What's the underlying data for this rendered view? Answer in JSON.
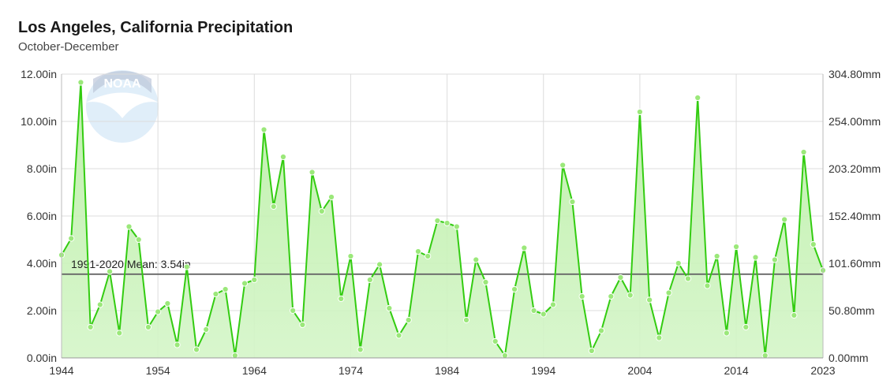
{
  "chart_data": {
    "type": "area",
    "title": "Los Angeles, California Precipitation",
    "subtitle": "October-December",
    "x": [
      1944,
      1945,
      1946,
      1947,
      1948,
      1949,
      1950,
      1951,
      1952,
      1953,
      1954,
      1955,
      1956,
      1957,
      1958,
      1959,
      1960,
      1961,
      1962,
      1963,
      1964,
      1965,
      1966,
      1967,
      1968,
      1969,
      1970,
      1971,
      1972,
      1973,
      1974,
      1975,
      1976,
      1977,
      1978,
      1979,
      1980,
      1981,
      1982,
      1983,
      1984,
      1985,
      1986,
      1987,
      1988,
      1989,
      1990,
      1991,
      1992,
      1993,
      1994,
      1995,
      1996,
      1997,
      1998,
      1999,
      2000,
      2001,
      2002,
      2003,
      2004,
      2005,
      2006,
      2007,
      2008,
      2009,
      2010,
      2011,
      2012,
      2013,
      2014,
      2015,
      2016,
      2017,
      2018,
      2019,
      2020,
      2021,
      2022,
      2023
    ],
    "values": [
      4.35,
      5.05,
      11.65,
      1.3,
      2.25,
      3.65,
      1.05,
      5.55,
      5.0,
      1.3,
      1.95,
      2.3,
      0.55,
      3.85,
      0.35,
      1.2,
      2.7,
      2.9,
      0.1,
      3.15,
      3.3,
      9.65,
      6.4,
      8.5,
      2.0,
      1.4,
      7.85,
      6.2,
      6.8,
      2.5,
      4.3,
      0.35,
      3.3,
      3.95,
      2.1,
      0.95,
      1.6,
      4.5,
      4.3,
      5.8,
      5.7,
      5.55,
      1.6,
      4.15,
      3.2,
      0.7,
      0.1,
      2.9,
      4.65,
      2.0,
      1.85,
      2.25,
      8.15,
      6.6,
      2.6,
      0.3,
      1.15,
      2.6,
      3.4,
      2.65,
      10.4,
      2.45,
      0.85,
      2.75,
      4.0,
      3.35,
      11.0,
      3.05,
      4.3,
      1.05,
      4.7,
      1.3,
      4.25,
      0.1,
      4.15,
      5.85,
      1.8,
      8.7,
      4.8,
      3.7
    ],
    "mean": {
      "label": "1991-2020 Mean: 3.54in",
      "value": 3.54
    },
    "xlim": [
      1944,
      2023
    ],
    "ylim": [
      0,
      12
    ],
    "y_ticks_left": [
      "0.00in",
      "2.00in",
      "4.00in",
      "6.00in",
      "8.00in",
      "10.00in",
      "12.00in"
    ],
    "y_ticks_right": [
      "0.00mm",
      "50.80mm",
      "101.60mm",
      "152.40mm",
      "203.20mm",
      "254.00mm",
      "304.80mm"
    ],
    "x_ticks": [
      "1944",
      "1954",
      "1964",
      "1974",
      "1984",
      "1994",
      "2004",
      "2014",
      "2023"
    ],
    "x_tick_values": [
      1944,
      1954,
      1964,
      1974,
      1984,
      1994,
      2004,
      2014,
      2023
    ],
    "grid": true,
    "colors": {
      "line": "#33cc11",
      "fill": "#d4f5c8",
      "marker": "#9be87a",
      "mean_line": "#666666",
      "grid": "#dcdcdc"
    },
    "watermark": "NOAA"
  }
}
